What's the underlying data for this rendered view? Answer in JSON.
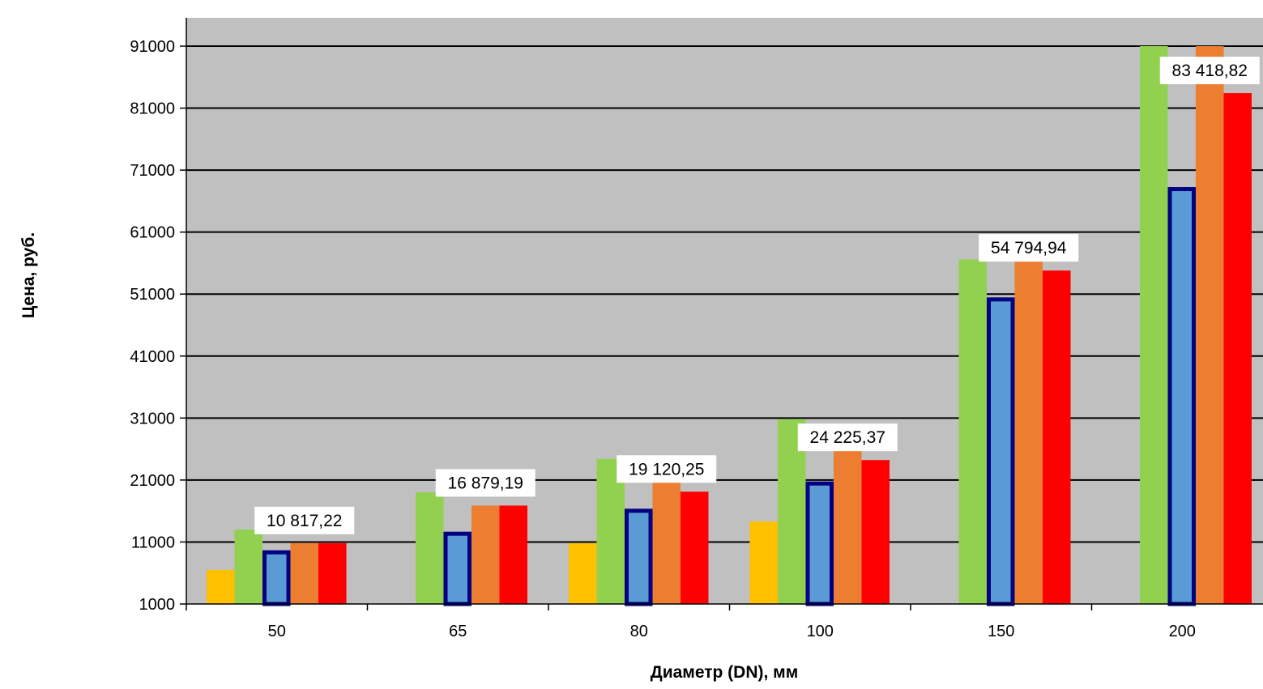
{
  "chart_data": {
    "type": "bar",
    "title": "",
    "xlabel": "Диаметр (DN), мм",
    "ylabel": "Цена, руб.",
    "categories": [
      "50",
      "65",
      "80",
      "100",
      "150",
      "200"
    ],
    "ylim": [
      1000,
      91000
    ],
    "yticks": [
      "1000",
      "11000",
      "21000",
      "31000",
      "41000",
      "51000",
      "61000",
      "71000",
      "81000",
      "91000"
    ],
    "grid": true,
    "legend": "none",
    "plot_background": "#c0c0c0",
    "series": [
      {
        "color": "#ffc000",
        "values": [
          6500,
          null,
          10800,
          14300,
          null,
          null
        ]
      },
      {
        "color": "#92d050",
        "values": [
          13000,
          19000,
          24400,
          30800,
          56600,
          91000
        ]
      },
      {
        "color": "#5b9bd5",
        "outline": "#000080",
        "values": [
          9600,
          12600,
          16300,
          20700,
          50400,
          68200
        ]
      },
      {
        "color": "#ed7d31",
        "values": [
          10817.22,
          16879.19,
          20900,
          27000,
          56600,
          91000
        ]
      },
      {
        "color": "#ff0000",
        "values": [
          10817.22,
          16879.19,
          19120.25,
          24225.37,
          54794.94,
          83418.82
        ]
      }
    ],
    "data_labels": [
      "10 817,22",
      "16 879,19",
      "19 120,25",
      "24 225,37",
      "54 794,94",
      "83 418,82"
    ]
  }
}
